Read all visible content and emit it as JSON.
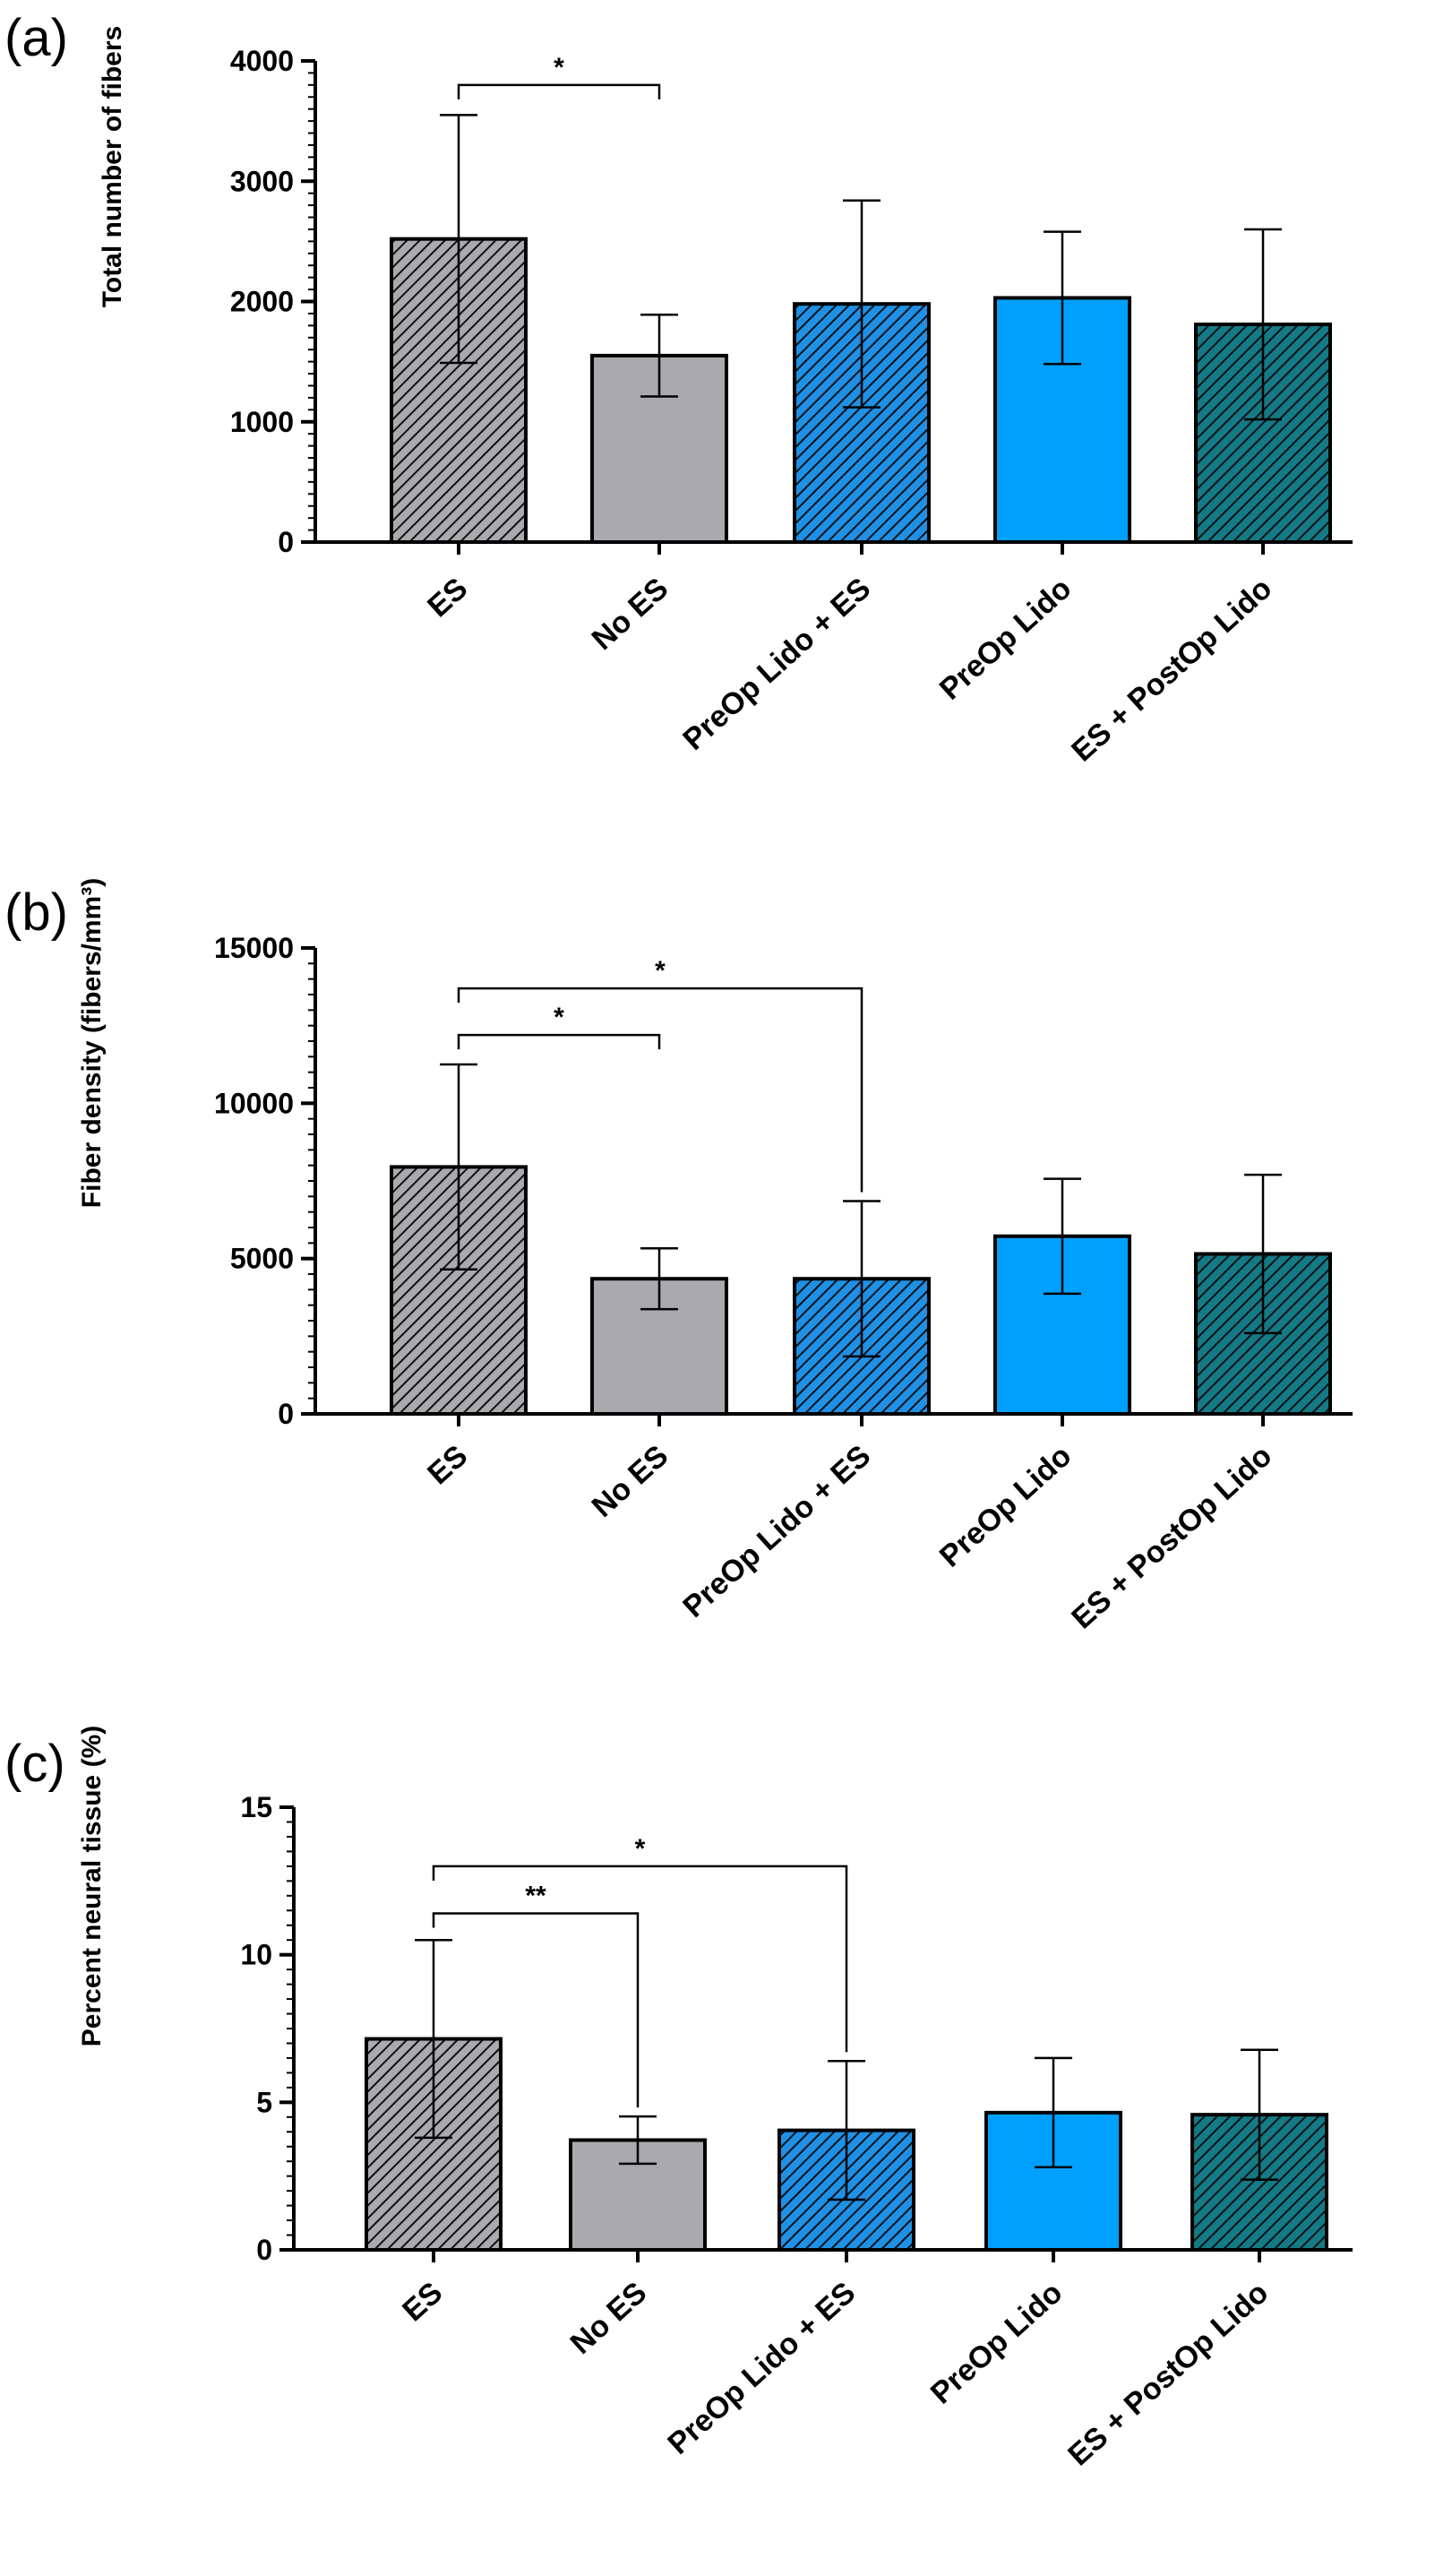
{
  "colors": {
    "es": "#a9a9ae",
    "no_es": "#a9a9ae",
    "preop_lido_es": "#1e90e6",
    "preop_lido": "#00a0ff",
    "es_postop_lido": "#137a86",
    "axis": "#000000"
  },
  "chart_data": [
    {
      "type": "bar",
      "panel": "(a)",
      "ylabel": "Total number of fibers",
      "categories": [
        "ES",
        "No ES",
        "PreOp Lido + ES",
        "PreOp Lido",
        "ES + PostOp Lido"
      ],
      "values": [
        2520,
        1550,
        1980,
        2030,
        1810
      ],
      "errors": [
        1030,
        340,
        860,
        550,
        790
      ],
      "hatched": [
        true,
        false,
        true,
        false,
        true
      ],
      "ylim": [
        0,
        4000
      ],
      "yticks": [
        0,
        1000,
        2000,
        3000,
        4000
      ],
      "ytick_labels": [
        "0",
        "1000",
        "2000",
        "3000",
        "4000"
      ],
      "minor_per_major": 10,
      "significance": [
        {
          "from": 0,
          "to": 1,
          "y": 3800,
          "label": "*"
        }
      ]
    },
    {
      "type": "bar",
      "panel": "(b)",
      "ylabel": "Fiber density  (fibers/mm³)",
      "categories": [
        "ES",
        "No ES",
        "PreOp Lido + ES",
        "PreOp Lido",
        "ES + PostOp Lido"
      ],
      "values": [
        7950,
        4350,
        4350,
        5720,
        5150
      ],
      "errors": [
        3300,
        980,
        2500,
        1850,
        2550
      ],
      "hatched": [
        true,
        false,
        true,
        false,
        true
      ],
      "ylim": [
        0,
        15000
      ],
      "yticks": [
        0,
        5000,
        10000,
        15000
      ],
      "ytick_labels": [
        "0",
        "5000",
        "10000",
        "15000"
      ],
      "minor_per_major": 10,
      "significance": [
        {
          "from": 0,
          "to": 1,
          "y": 12200,
          "label": "*"
        },
        {
          "from": 0,
          "to": 2,
          "y": 13700,
          "label": "*"
        }
      ]
    },
    {
      "type": "bar",
      "panel": "(c)",
      "ylabel": "Percent neural tissue  (%)",
      "categories": [
        "ES",
        "No ES",
        "PreOp Lido + ES",
        "PreOp Lido",
        "ES + PostOp Lido"
      ],
      "values": [
        7.15,
        3.72,
        4.05,
        4.65,
        4.58
      ],
      "errors": [
        3.35,
        0.8,
        2.35,
        1.85,
        2.2
      ],
      "hatched": [
        true,
        false,
        true,
        false,
        true
      ],
      "ylim": [
        0,
        15
      ],
      "yticks": [
        0,
        5,
        10,
        15
      ],
      "ytick_labels": [
        "0",
        "5",
        "10",
        "15"
      ],
      "minor_per_major": 10,
      "significance": [
        {
          "from": 0,
          "to": 1,
          "y": 11.4,
          "label": "**"
        },
        {
          "from": 0,
          "to": 2,
          "y": 13.0,
          "label": "*"
        }
      ]
    }
  ]
}
